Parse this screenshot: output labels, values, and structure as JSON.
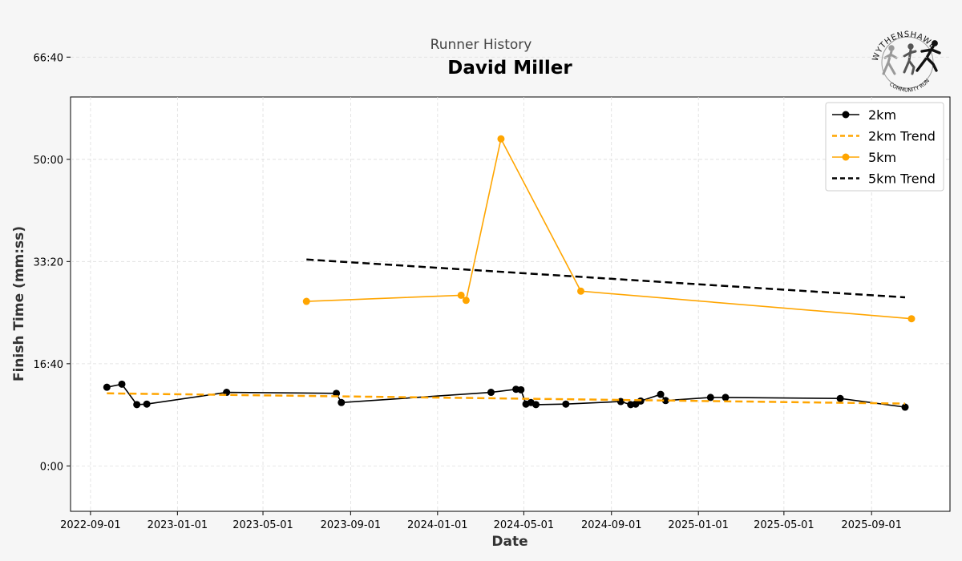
{
  "header": {
    "subtitle": "Runner History",
    "title": "David Miller"
  },
  "logo": {
    "top_text": "WYTHENSHAWE",
    "bottom_text": "COMMUNITY RUN"
  },
  "colors": {
    "series_2km": "#000000",
    "series_5km": "#ffa500",
    "trend_2km": "#ffa500",
    "trend_5km": "#000000",
    "grid": "#dddddd",
    "plot_bg": "#ffffff",
    "figure_bg": "#f6f6f6"
  },
  "chart_data": {
    "type": "line",
    "xlabel": "Date",
    "ylabel": "Finish Time (mm:ss)",
    "x_type": "date",
    "xlim": [
      "2022-08-04",
      "2025-12-20"
    ],
    "ylim_seconds": [
      -444,
      3610
    ],
    "x_ticks": [
      {
        "date": "2022-09-01",
        "label": "2022-09-01"
      },
      {
        "date": "2023-01-01",
        "label": "2023-01-01"
      },
      {
        "date": "2023-05-01",
        "label": "2023-05-01"
      },
      {
        "date": "2023-09-01",
        "label": "2023-09-01"
      },
      {
        "date": "2024-01-01",
        "label": "2024-01-01"
      },
      {
        "date": "2024-05-01",
        "label": "2024-05-01"
      },
      {
        "date": "2024-09-01",
        "label": "2024-09-01"
      },
      {
        "date": "2025-01-01",
        "label": "2025-01-01"
      },
      {
        "date": "2025-05-01",
        "label": "2025-05-01"
      },
      {
        "date": "2025-09-01",
        "label": "2025-09-01"
      }
    ],
    "y_ticks": [
      {
        "seconds": 0,
        "label": "0:00"
      },
      {
        "seconds": 1000,
        "label": "16:40"
      },
      {
        "seconds": 2000,
        "label": "33:20"
      },
      {
        "seconds": 3000,
        "label": "50:00"
      },
      {
        "seconds": 4000,
        "label": "66:40"
      }
    ],
    "grid": true,
    "legend_position": "top-right",
    "series": [
      {
        "name": "2km",
        "kind": "line-markers",
        "color": "#000000",
        "points": [
          {
            "x": "2022-09-24",
            "y": 770
          },
          {
            "x": "2022-10-15",
            "y": 800
          },
          {
            "x": "2022-11-05",
            "y": 600
          },
          {
            "x": "2022-11-19",
            "y": 605
          },
          {
            "x": "2023-03-11",
            "y": 720
          },
          {
            "x": "2023-08-12",
            "y": 710
          },
          {
            "x": "2023-08-19",
            "y": 620
          },
          {
            "x": "2024-03-16",
            "y": 720
          },
          {
            "x": "2024-04-20",
            "y": 750
          },
          {
            "x": "2024-04-27",
            "y": 745
          },
          {
            "x": "2024-05-04",
            "y": 605
          },
          {
            "x": "2024-05-11",
            "y": 620
          },
          {
            "x": "2024-05-18",
            "y": 600
          },
          {
            "x": "2024-06-29",
            "y": 605
          },
          {
            "x": "2024-09-14",
            "y": 630
          },
          {
            "x": "2024-09-28",
            "y": 600
          },
          {
            "x": "2024-10-05",
            "y": 605
          },
          {
            "x": "2024-10-12",
            "y": 635
          },
          {
            "x": "2024-11-09",
            "y": 700
          },
          {
            "x": "2024-11-16",
            "y": 640
          },
          {
            "x": "2025-01-18",
            "y": 670
          },
          {
            "x": "2025-02-08",
            "y": 670
          },
          {
            "x": "2025-07-19",
            "y": 660
          },
          {
            "x": "2025-10-18",
            "y": 575
          }
        ]
      },
      {
        "name": "2km Trend",
        "kind": "dashed",
        "color": "#ffa500",
        "points": [
          {
            "x": "2022-09-24",
            "y": 710
          },
          {
            "x": "2025-10-18",
            "y": 610
          }
        ]
      },
      {
        "name": "5km",
        "kind": "line-markers",
        "color": "#ffa500",
        "points": [
          {
            "x": "2023-07-01",
            "y": 1610
          },
          {
            "x": "2024-02-03",
            "y": 1670
          },
          {
            "x": "2024-02-10",
            "y": 1620
          },
          {
            "x": "2024-03-30",
            "y": 3200
          },
          {
            "x": "2024-07-20",
            "y": 1710
          },
          {
            "x": "2025-10-27",
            "y": 1440
          }
        ]
      },
      {
        "name": "5km Trend",
        "kind": "dashed",
        "color": "#000000",
        "points": [
          {
            "x": "2023-07-01",
            "y": 2020
          },
          {
            "x": "2025-10-18",
            "y": 1650
          }
        ]
      }
    ]
  }
}
